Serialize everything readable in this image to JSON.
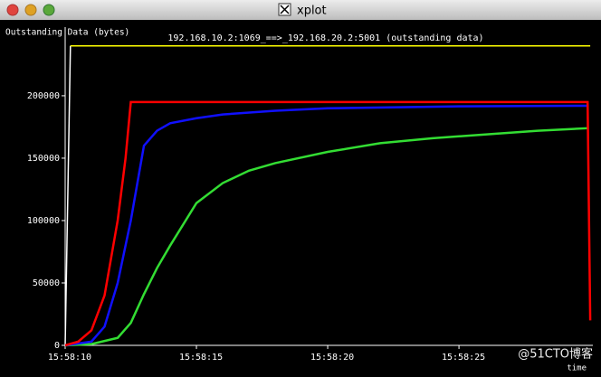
{
  "window_title": "xplot",
  "watermark": "@51CTO博客",
  "chart_data": {
    "type": "line",
    "title": "192.168.10.2:1069_==>_192.168.20.2:5001 (outstanding data)",
    "y_label": "Outstanding Data (bytes)",
    "x_label": "time",
    "xlim": [
      10,
      30.1
    ],
    "ylim": [
      0,
      255000
    ],
    "xticks": [
      {
        "value": 10,
        "label": "15:58:10"
      },
      {
        "value": 15,
        "label": "15:58:15"
      },
      {
        "value": 20,
        "label": "15:58:20"
      },
      {
        "value": 25,
        "label": "15:58:25"
      }
    ],
    "yticks": [
      0,
      50000,
      100000,
      150000,
      200000
    ],
    "series": [
      {
        "color": "#ffffff",
        "x": [
          10,
          10.2
        ],
        "values": [
          0,
          240000
        ]
      },
      {
        "color": "#ffff00",
        "x": [
          10.2,
          30.0
        ],
        "values": [
          240000,
          240000
        ]
      },
      {
        "color": "#33dd33",
        "x": [
          10,
          11,
          12,
          12.5,
          13,
          13.5,
          14,
          15,
          16,
          17,
          18,
          20,
          22,
          24,
          26,
          28,
          29.9
        ],
        "values": [
          0,
          1000,
          6000,
          18000,
          41000,
          62000,
          80000,
          114000,
          130000,
          140000,
          146000,
          155000,
          162000,
          166000,
          169000,
          172000,
          174000
        ]
      },
      {
        "color": "#1010ff",
        "x": [
          10,
          11,
          11.5,
          12,
          12.5,
          13,
          13.5,
          14,
          15,
          16,
          18,
          20,
          25,
          29.9
        ],
        "values": [
          0,
          3000,
          15000,
          50000,
          100000,
          160000,
          172000,
          178000,
          182000,
          185000,
          188000,
          190000,
          191500,
          192000
        ]
      },
      {
        "color": "#ff0000",
        "x": [
          10,
          10.5,
          11,
          11.5,
          12,
          12.3,
          12.5,
          29.9,
          30.0
        ],
        "values": [
          0,
          3000,
          12000,
          40000,
          100000,
          150000,
          195000,
          195000,
          20000
        ]
      }
    ]
  }
}
